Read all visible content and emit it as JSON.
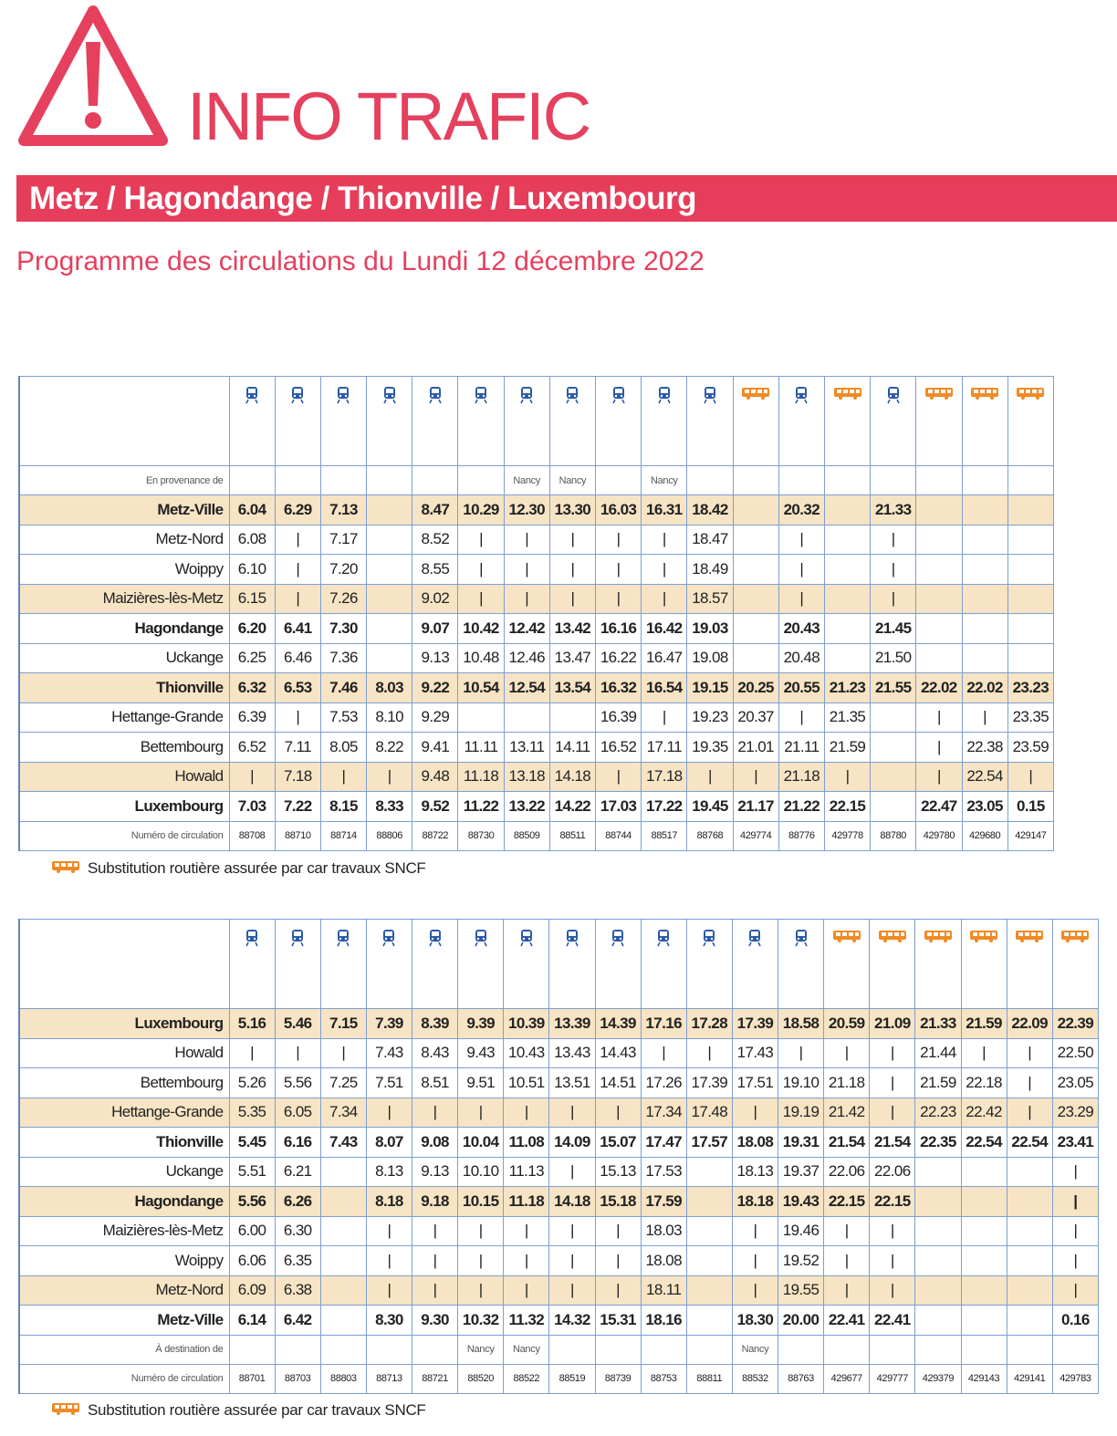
{
  "header": {
    "title": "INFO TRAFIC",
    "line": "Metz / Hagondange / Thionville / Luxembourg",
    "subtitle": "Programme des circulations du Lundi 12 décembre 2022"
  },
  "tables": [
    {
      "modes": [
        "train",
        "train",
        "train",
        "train",
        "train",
        "train",
        "train",
        "train",
        "train",
        "train",
        "train",
        "bus",
        "train",
        "bus",
        "train",
        "bus",
        "bus",
        "bus"
      ],
      "origin": {
        "label": "En provenance de",
        "values": [
          null,
          null,
          null,
          null,
          null,
          null,
          "Nancy",
          "Nancy",
          null,
          "Nancy",
          null,
          null,
          null,
          null,
          null,
          null,
          null,
          null
        ]
      },
      "rows": [
        {
          "station": "Metz-Ville",
          "bold": true,
          "shaded": true,
          "values": [
            "6.04",
            "6.29",
            "7.13",
            null,
            "8.47",
            "10.29",
            "12.30",
            "13.30",
            "16.03",
            "16.31",
            "18.42",
            null,
            "20.32",
            null,
            "21.33",
            null,
            null,
            null
          ]
        },
        {
          "station": "Metz-Nord",
          "bold": false,
          "shaded": false,
          "values": [
            "6.08",
            "|",
            "7.17",
            null,
            "8.52",
            "|",
            "|",
            "|",
            "|",
            "|",
            "18.47",
            null,
            "|",
            null,
            "|",
            null,
            null,
            null
          ]
        },
        {
          "station": "Woippy",
          "bold": false,
          "shaded": false,
          "values": [
            "6.10",
            "|",
            "7.20",
            null,
            "8.55",
            "|",
            "|",
            "|",
            "|",
            "|",
            "18.49",
            null,
            "|",
            null,
            "|",
            null,
            null,
            null
          ]
        },
        {
          "station": "Maizières-lès-Metz",
          "bold": false,
          "shaded": true,
          "values": [
            "6.15",
            "|",
            "7.26",
            null,
            "9.02",
            "|",
            "|",
            "|",
            "|",
            "|",
            "18.57",
            null,
            "|",
            null,
            "|",
            null,
            null,
            null
          ]
        },
        {
          "station": "Hagondange",
          "bold": true,
          "shaded": false,
          "values": [
            "6.20",
            "6.41",
            "7.30",
            null,
            "9.07",
            "10.42",
            "12.42",
            "13.42",
            "16.16",
            "16.42",
            "19.03",
            null,
            "20.43",
            null,
            "21.45",
            null,
            null,
            null
          ]
        },
        {
          "station": "Uckange",
          "bold": false,
          "shaded": false,
          "values": [
            "6.25",
            "6.46",
            "7.36",
            null,
            "9.13",
            "10.48",
            "12.46",
            "13.47",
            "16.22",
            "16.47",
            "19.08",
            null,
            "20.48",
            null,
            "21.50",
            null,
            null,
            null
          ]
        },
        {
          "station": "Thionville",
          "bold": true,
          "shaded": true,
          "values": [
            "6.32",
            "6.53",
            "7.46",
            "8.03",
            "9.22",
            "10.54",
            "12.54",
            "13.54",
            "16.32",
            "16.54",
            "19.15",
            "20.25",
            "20.55",
            "21.23",
            "21.55",
            "22.02",
            "22.02",
            "23.23"
          ]
        },
        {
          "station": "Hettange-Grande",
          "bold": false,
          "shaded": false,
          "values": [
            "6.39",
            "|",
            "7.53",
            "8.10",
            "9.29",
            null,
            null,
            null,
            "16.39",
            "|",
            "19.23",
            "20.37",
            "|",
            "21.35",
            null,
            "|",
            "|",
            "23.35"
          ]
        },
        {
          "station": "Bettembourg",
          "bold": false,
          "shaded": false,
          "values": [
            "6.52",
            "7.11",
            "8.05",
            "8.22",
            "9.41",
            "11.11",
            "13.11",
            "14.11",
            "16.52",
            "17.11",
            "19.35",
            "21.01",
            "21.11",
            "21.59",
            null,
            "|",
            "22.38",
            "23.59"
          ]
        },
        {
          "station": "Howald",
          "bold": false,
          "shaded": true,
          "values": [
            "|",
            "7.18",
            "|",
            "|",
            "9.48",
            "11.18",
            "13.18",
            "14.18",
            "|",
            "17.18",
            "|",
            "|",
            "21.18",
            "|",
            null,
            "|",
            "22.54",
            "|"
          ]
        },
        {
          "station": "Luxembourg",
          "bold": true,
          "shaded": false,
          "values": [
            "7.03",
            "7.22",
            "8.15",
            "8.33",
            "9.52",
            "11.22",
            "13.22",
            "14.22",
            "17.03",
            "17.22",
            "19.45",
            "21.17",
            "21.22",
            "22.15",
            null,
            "22.47",
            "23.05",
            "0.15"
          ]
        }
      ],
      "numbers": {
        "label": "Numéro de circulation",
        "values": [
          "88708",
          "88710",
          "88714",
          "88806",
          "88722",
          "88730",
          "88509",
          "88511",
          "88744",
          "88517",
          "88768",
          "429774",
          "88776",
          "429778",
          "88780",
          "429780",
          "429680",
          "429147"
        ]
      },
      "legend": "Substitution routière assurée par car travaux SNCF"
    },
    {
      "modes": [
        "train",
        "train",
        "train",
        "train",
        "train",
        "train",
        "train",
        "train",
        "train",
        "train",
        "train",
        "train",
        "train",
        "bus",
        "bus",
        "bus",
        "bus",
        "bus",
        "bus"
      ],
      "rows": [
        {
          "station": "Luxembourg",
          "bold": true,
          "shaded": true,
          "values": [
            "5.16",
            "5.46",
            "7.15",
            "7.39",
            "8.39",
            "9.39",
            "10.39",
            "13.39",
            "14.39",
            "17.16",
            "17.28",
            "17.39",
            "18.58",
            "20.59",
            "21.09",
            "21.33",
            "21.59",
            "22.09",
            "22.39"
          ]
        },
        {
          "station": "Howald",
          "bold": false,
          "shaded": false,
          "values": [
            "|",
            "|",
            "|",
            "7.43",
            "8.43",
            "9.43",
            "10.43",
            "13.43",
            "14.43",
            "|",
            "|",
            "17.43",
            "|",
            "|",
            "|",
            "21.44",
            "|",
            "|",
            "22.50"
          ]
        },
        {
          "station": "Bettembourg",
          "bold": false,
          "shaded": false,
          "values": [
            "5.26",
            "5.56",
            "7.25",
            "7.51",
            "8.51",
            "9.51",
            "10.51",
            "13.51",
            "14.51",
            "17.26",
            "17.39",
            "17.51",
            "19.10",
            "21.18",
            "|",
            "21.59",
            "22.18",
            "|",
            "23.05"
          ]
        },
        {
          "station": "Hettange-Grande",
          "bold": false,
          "shaded": true,
          "values": [
            "5.35",
            "6.05",
            "7.34",
            "|",
            "|",
            "|",
            "|",
            "|",
            "|",
            "17.34",
            "17.48",
            "|",
            "19.19",
            "21.42",
            "|",
            "22.23",
            "22.42",
            "|",
            "23.29"
          ]
        },
        {
          "station": "Thionville",
          "bold": true,
          "shaded": false,
          "values": [
            "5.45",
            "6.16",
            "7.43",
            "8.07",
            "9.08",
            "10.04",
            "11.08",
            "14.09",
            "15.07",
            "17.47",
            "17.57",
            "18.08",
            "19.31",
            "21.54",
            "21.54",
            "22.35",
            "22.54",
            "22.54",
            "23.41"
          ]
        },
        {
          "station": "Uckange",
          "bold": false,
          "shaded": false,
          "values": [
            "5.51",
            "6.21",
            null,
            "8.13",
            "9.13",
            "10.10",
            "11.13",
            "|",
            "15.13",
            "17.53",
            null,
            "18.13",
            "19.37",
            "22.06",
            "22.06",
            null,
            null,
            null,
            "|"
          ]
        },
        {
          "station": "Hagondange",
          "bold": true,
          "shaded": true,
          "values": [
            "5.56",
            "6.26",
            null,
            "8.18",
            "9.18",
            "10.15",
            "11.18",
            "14.18",
            "15.18",
            "17.59",
            null,
            "18.18",
            "19.43",
            "22.15",
            "22.15",
            null,
            null,
            null,
            "|"
          ]
        },
        {
          "station": "Maizières-lès-Metz",
          "bold": false,
          "shaded": false,
          "values": [
            "6.00",
            "6.30",
            null,
            "|",
            "|",
            "|",
            "|",
            "|",
            "|",
            "18.03",
            null,
            "|",
            "19.46",
            "|",
            "|",
            null,
            null,
            null,
            "|"
          ]
        },
        {
          "station": "Woippy",
          "bold": false,
          "shaded": false,
          "values": [
            "6.06",
            "6.35",
            null,
            "|",
            "|",
            "|",
            "|",
            "|",
            "|",
            "18.08",
            null,
            "|",
            "19.52",
            "|",
            "|",
            null,
            null,
            null,
            "|"
          ]
        },
        {
          "station": "Metz-Nord",
          "bold": false,
          "shaded": true,
          "values": [
            "6.09",
            "6.38",
            null,
            "|",
            "|",
            "|",
            "|",
            "|",
            "|",
            "18.11",
            null,
            "|",
            "19.55",
            "|",
            "|",
            null,
            null,
            null,
            "|"
          ]
        },
        {
          "station": "Metz-Ville",
          "bold": true,
          "shaded": false,
          "values": [
            "6.14",
            "6.42",
            null,
            "8.30",
            "9.30",
            "10.32",
            "11.32",
            "14.32",
            "15.31",
            "18.16",
            null,
            "18.30",
            "20.00",
            "22.41",
            "22.41",
            null,
            null,
            null,
            "0.16"
          ]
        }
      ],
      "destination": {
        "label": "À destination de",
        "values": [
          null,
          null,
          null,
          null,
          null,
          "Nancy",
          "Nancy",
          null,
          null,
          null,
          null,
          "Nancy",
          null,
          null,
          null,
          null,
          null,
          null,
          null
        ]
      },
      "numbers": {
        "label": "Numéro de circulation",
        "values": [
          "88701",
          "88703",
          "88803",
          "88713",
          "88721",
          "88520",
          "88522",
          "88519",
          "88739",
          "88753",
          "88811",
          "88532",
          "88763",
          "429677",
          "429777",
          "429379",
          "429143",
          "429141",
          "429783"
        ]
      },
      "legend": "Substitution routière assurée par car travaux SNCF"
    }
  ]
}
